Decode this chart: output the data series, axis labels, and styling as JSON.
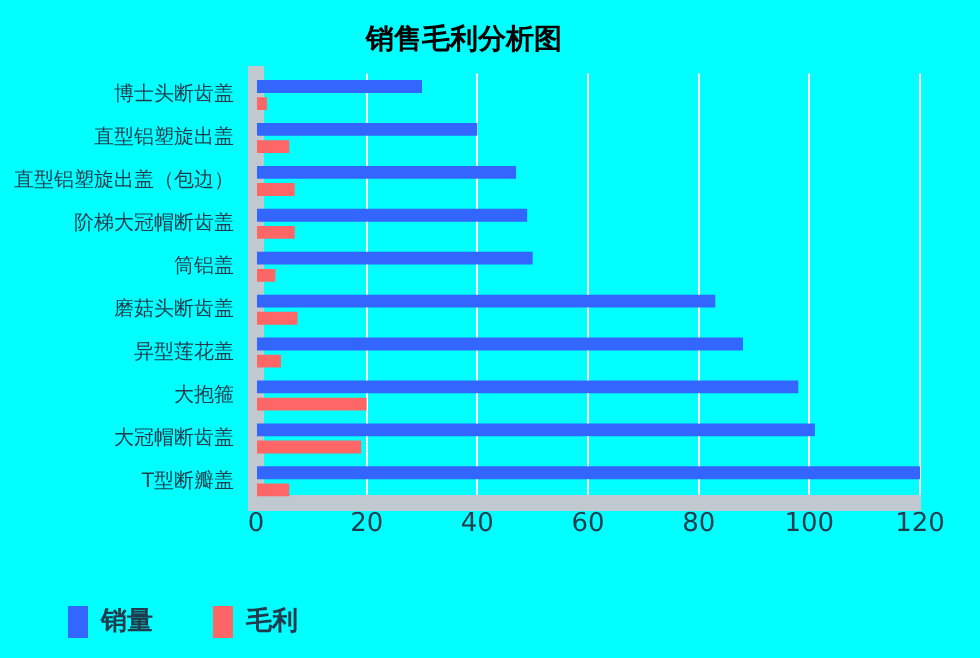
{
  "chart_data": {
    "type": "bar",
    "orientation": "horizontal",
    "title": "销售毛利分析图",
    "categories": [
      "博士头断齿盖",
      "直型铝塑旋出盖",
      "直型铝塑旋出盖（包边）",
      "阶梯大冠帽断齿盖",
      "筒铝盖",
      "磨菇头断齿盖",
      "异型莲花盖",
      "大抱箍",
      "大冠帽断齿盖",
      "T型断瓣盖"
    ],
    "series": [
      {
        "name": "销量",
        "color": "#3366ff",
        "values": [
          30,
          40,
          47,
          49,
          50,
          83,
          88,
          98,
          101,
          120
        ]
      },
      {
        "name": "毛利",
        "color": "#ff6666",
        "values": [
          2,
          6,
          7,
          7,
          3.5,
          7.5,
          4.5,
          20,
          19,
          6
        ]
      }
    ],
    "xlim": [
      0,
      120
    ],
    "xticks": [
      0,
      20,
      40,
      60,
      80,
      100,
      120
    ],
    "grid": "x",
    "legend": "bottom left"
  }
}
